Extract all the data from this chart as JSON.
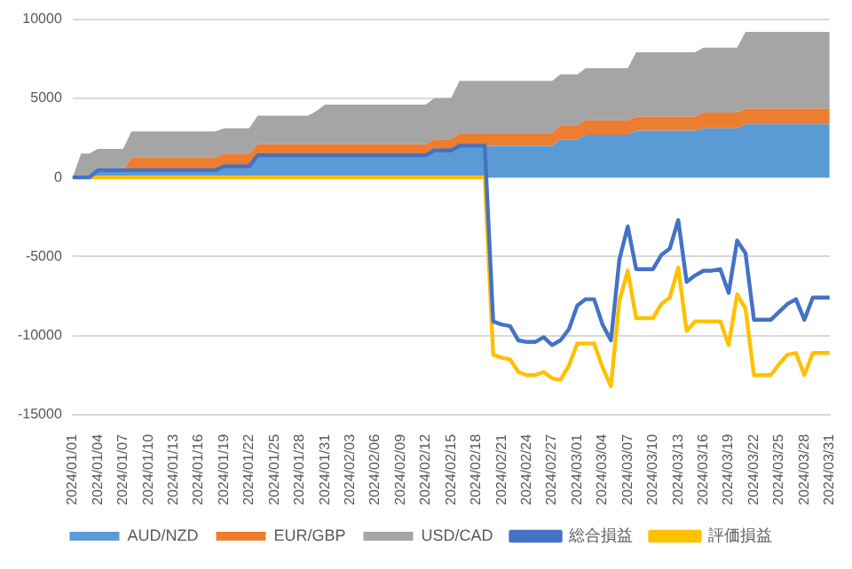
{
  "chart_data": {
    "type": "area",
    "stacked": true,
    "grid": "y",
    "legend": "bottom",
    "categories": [
      "2024/01/01",
      null,
      null,
      "2024/01/04",
      null,
      null,
      "2024/01/07",
      null,
      null,
      "2024/01/10",
      null,
      null,
      "2024/01/13",
      null,
      null,
      "2024/01/16",
      null,
      null,
      "2024/01/19",
      null,
      null,
      "2024/01/22",
      null,
      null,
      "2024/01/25",
      null,
      null,
      "2024/01/28",
      null,
      null,
      "2024/01/31",
      null,
      null,
      "2024/02/03",
      null,
      null,
      "2024/02/06",
      null,
      null,
      "2024/02/09",
      null,
      null,
      "2024/02/12",
      null,
      null,
      "2024/02/15",
      null,
      null,
      "2024/02/18",
      null,
      null,
      "2024/02/21",
      null,
      null,
      "2024/02/24",
      null,
      null,
      "2024/02/27",
      null,
      null,
      "2024/03/01",
      null,
      null,
      "2024/03/04",
      null,
      null,
      "2024/03/07",
      null,
      null,
      "2024/03/10",
      null,
      null,
      "2024/03/13",
      null,
      null,
      "2024/03/16",
      null,
      null,
      "2024/03/19",
      null,
      null,
      "2024/03/22",
      null,
      null,
      "2024/03/25",
      null,
      null,
      "2024/03/28",
      null,
      null,
      "2024/03/31"
    ],
    "ylim": [
      -15000,
      10000
    ],
    "yticks": [
      -15000,
      -10000,
      -5000,
      0,
      5000,
      10000
    ],
    "series": [
      {
        "name": "AUD/NZD",
        "color": "#5b9bd5",
        "values": [
          0,
          0,
          0,
          450,
          450,
          450,
          450,
          450,
          450,
          450,
          450,
          450,
          450,
          450,
          450,
          450,
          450,
          450,
          700,
          700,
          700,
          700,
          1400,
          1400,
          1400,
          1400,
          1400,
          1400,
          1400,
          1400,
          1400,
          1400,
          1400,
          1400,
          1400,
          1400,
          1400,
          1400,
          1400,
          1400,
          1400,
          1400,
          1400,
          1700,
          1700,
          1700,
          2000,
          2000,
          2000,
          2000,
          2000,
          2000,
          2000,
          2000,
          2000,
          2000,
          2000,
          2000,
          2400,
          2400,
          2400,
          2700,
          2700,
          2700,
          2700,
          2700,
          2700,
          2950,
          2950,
          2950,
          2950,
          2950,
          2950,
          2950,
          2950,
          3100,
          3100,
          3100,
          3100,
          3100,
          3350,
          3350,
          3350,
          3350,
          3350,
          3350,
          3350,
          3350,
          3350,
          3350,
          3350
        ]
      },
      {
        "name": "EUR/GBP",
        "color": "#ed7d31",
        "values": [
          0,
          0,
          0,
          0,
          0,
          0,
          0,
          800,
          800,
          800,
          800,
          800,
          800,
          800,
          800,
          800,
          800,
          800,
          800,
          800,
          800,
          800,
          700,
          700,
          700,
          700,
          700,
          700,
          700,
          700,
          700,
          700,
          700,
          700,
          700,
          700,
          700,
          700,
          700,
          700,
          700,
          700,
          700,
          700,
          700,
          700,
          800,
          800,
          800,
          800,
          800,
          800,
          800,
          800,
          800,
          800,
          800,
          800,
          900,
          900,
          900,
          900,
          900,
          900,
          900,
          900,
          900,
          900,
          900,
          900,
          900,
          900,
          900,
          900,
          900,
          1000,
          1000,
          1000,
          1000,
          1000,
          1000,
          1000,
          1000,
          1000,
          1000,
          1000,
          1000,
          1000,
          1000,
          1000,
          1000
        ]
      },
      {
        "name": "USD/CAD",
        "color": "#a5a5a5",
        "values": [
          0,
          1500,
          1500,
          1350,
          1350,
          1350,
          1350,
          1650,
          1650,
          1650,
          1650,
          1650,
          1650,
          1650,
          1650,
          1650,
          1650,
          1650,
          1600,
          1600,
          1600,
          1600,
          1800,
          1800,
          1800,
          1800,
          1800,
          1800,
          1800,
          2100,
          2500,
          2500,
          2500,
          2500,
          2500,
          2500,
          2500,
          2500,
          2500,
          2500,
          2500,
          2500,
          2500,
          2600,
          2600,
          2600,
          3300,
          3300,
          3300,
          3300,
          3300,
          3300,
          3300,
          3300,
          3300,
          3300,
          3300,
          3300,
          3200,
          3200,
          3200,
          3300,
          3300,
          3300,
          3300,
          3300,
          3300,
          4050,
          4050,
          4050,
          4050,
          4050,
          4050,
          4050,
          4050,
          4100,
          4100,
          4100,
          4100,
          4100,
          4850,
          4850,
          4850,
          4850,
          4850,
          4850,
          4850,
          4850,
          4850,
          4850,
          4850
        ]
      },
      {
        "name": "総合損益",
        "type": "line",
        "color": "#4472c4",
        "values": [
          0,
          0,
          0,
          450,
          450,
          450,
          450,
          450,
          450,
          450,
          450,
          450,
          450,
          450,
          450,
          450,
          450,
          450,
          700,
          700,
          700,
          700,
          1400,
          1400,
          1400,
          1400,
          1400,
          1400,
          1400,
          1400,
          1400,
          1400,
          1400,
          1400,
          1400,
          1400,
          1400,
          1400,
          1400,
          1400,
          1400,
          1400,
          1400,
          1700,
          1700,
          1700,
          2000,
          2000,
          2000,
          2000,
          -9100,
          -9300,
          -9400,
          -10300,
          -10400,
          -10400,
          -10100,
          -10600,
          -10300,
          -9600,
          -8100,
          -7700,
          -7700,
          -9300,
          -10300,
          -5200,
          -3100,
          -5800,
          -5800,
          -5800,
          -4900,
          -4500,
          -2700,
          -6600,
          -6200,
          -5900,
          -5900,
          -5800,
          -7300,
          -4000,
          -4800,
          -9000,
          -9000,
          -9000,
          -8500,
          -8000,
          -7700,
          -9000,
          -7600,
          -7600,
          -7600
        ]
      },
      {
        "name": "評価損益",
        "type": "line",
        "color": "#ffc000",
        "values": [
          0,
          0,
          0,
          0,
          0,
          0,
          0,
          0,
          0,
          0,
          0,
          0,
          0,
          0,
          0,
          0,
          0,
          0,
          0,
          0,
          0,
          0,
          0,
          0,
          0,
          0,
          0,
          0,
          0,
          0,
          0,
          0,
          0,
          0,
          0,
          0,
          0,
          0,
          0,
          0,
          0,
          0,
          0,
          0,
          0,
          0,
          0,
          0,
          0,
          0,
          -11200,
          -11400,
          -11500,
          -12300,
          -12500,
          -12500,
          -12300,
          -12700,
          -12800,
          -11900,
          -10500,
          -10500,
          -10500,
          -12000,
          -13200,
          -7800,
          -5900,
          -8900,
          -8900,
          -8900,
          -8000,
          -7600,
          -5700,
          -9700,
          -9100,
          -9100,
          -9100,
          -9100,
          -10600,
          -7400,
          -8300,
          -12500,
          -12500,
          -12500,
          -11800,
          -11200,
          -11100,
          -12500,
          -11100,
          -11100,
          -11100
        ]
      }
    ]
  }
}
